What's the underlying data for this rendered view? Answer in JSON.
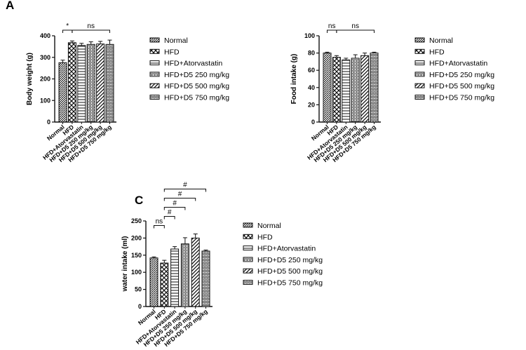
{
  "patterns": [
    "p-normal",
    "p-hfd",
    "p-atorva",
    "p-d250",
    "p-d500",
    "p-d750"
  ],
  "chart_data": [
    {
      "type": "bar",
      "panel_letter": "A",
      "categories": [
        "Normal",
        "HFD",
        "HFD+Atorvastatin",
        "HFD+D5 250 mg/kg",
        "HFD+D5 500 mg/kg",
        "HFD+D5 750 mg/kg"
      ],
      "values": [
        275,
        368,
        355,
        360,
        362,
        360
      ],
      "errors": [
        12,
        8,
        10,
        12,
        12,
        20
      ],
      "ylabel": "Body weight (g)",
      "ylim": [
        0,
        400
      ],
      "yticks": [
        0,
        100,
        200,
        300,
        400
      ],
      "legend": [
        "Normal",
        "HFD",
        "HFD+Atorvastatin",
        "HFD+D5 250 mg/kg",
        "HFD+D5 500 mg/kg",
        "HFD+D5 750 mg/kg"
      ],
      "significance": [
        {
          "from": 0,
          "to": 1,
          "label": "*"
        },
        {
          "from": 1,
          "to": 5,
          "label": "ns"
        }
      ]
    },
    {
      "type": "bar",
      "panel_letter": "",
      "categories": [
        "Normal",
        "HFD",
        "HFD+Atorvastatin",
        "HFD+D5 250 mg/kg",
        "HFD+D5 500 mg/kg",
        "HFD+D5 750 mg/kg"
      ],
      "values": [
        80,
        75,
        72,
        74,
        77,
        80
      ],
      "errors": [
        1,
        2,
        2,
        4,
        3,
        1
      ],
      "ylabel": "Food intake (g)",
      "ylim": [
        0,
        100
      ],
      "yticks": [
        0,
        20,
        40,
        60,
        80,
        100
      ],
      "legend": [
        "Normal",
        "HFD",
        "HFD+Atorvastatin",
        "HFD+D5 250 mg/kg",
        "HFD+D5 500 mg/kg",
        "HFD+D5 750 mg/kg"
      ],
      "significance": [
        {
          "from": 0,
          "to": 1,
          "label": "ns"
        },
        {
          "from": 1,
          "to": 5,
          "label": "ns"
        }
      ]
    },
    {
      "type": "bar",
      "panel_letter": "C",
      "categories": [
        "Normal",
        "HFD",
        "HFD+Atorvastatin",
        "HFD+D5 250 mg/kg",
        "HFD+D5 500 mg/kg",
        "HFD+D5 750 mg/kg"
      ],
      "values": [
        142,
        127,
        168,
        183,
        200,
        162
      ],
      "errors": [
        3,
        8,
        7,
        18,
        12,
        3
      ],
      "ylabel": "water intake (ml)",
      "ylim": [
        0,
        250
      ],
      "yticks": [
        0,
        50,
        100,
        150,
        200,
        250
      ],
      "legend": [
        "Normal",
        "HFD",
        "HFD+Atorvastatin",
        "HFD+D5 250 mg/kg",
        "HFD+D5 500 mg/kg",
        "HFD+D5 750 mg/kg"
      ],
      "significance": [
        {
          "from": 0,
          "to": 1,
          "label": "ns"
        },
        {
          "from": 1,
          "to": 2,
          "label": "#"
        },
        {
          "from": 1,
          "to": 3,
          "label": "#"
        },
        {
          "from": 1,
          "to": 4,
          "label": "#"
        },
        {
          "from": 1,
          "to": 5,
          "label": "#"
        }
      ]
    }
  ]
}
